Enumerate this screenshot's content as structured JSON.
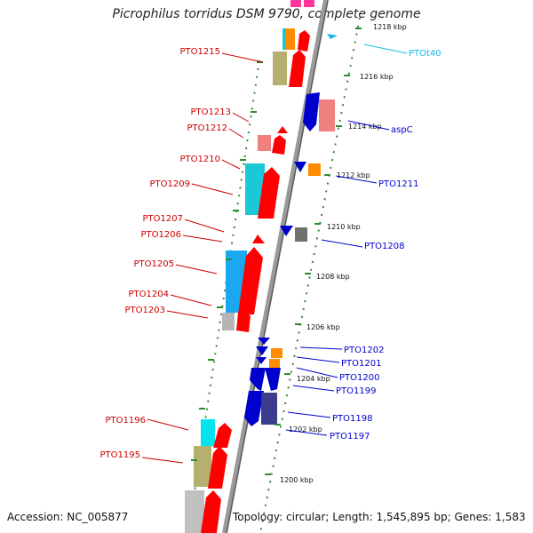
{
  "header": {
    "title": "Picrophilus torridus DSM 9790, complete genome"
  },
  "footer": {
    "accession": "Accession: NC_005877",
    "topology": "Topology: circular; Length: 1,545,895 bp; Genes: 1,583"
  },
  "ruler_ticks": [
    "1218 kbp",
    "1216 kbp",
    "1214 kbp",
    "1212 kbp",
    "1210 kbp",
    "1208 kbp",
    "1206 kbp",
    "1204 kbp",
    "1202 kbp",
    "1200 kbp"
  ],
  "left_labels": [
    "PTO1215",
    "PTO1213",
    "PTO1212",
    "PTO1210",
    "PTO1209",
    "PTO1207",
    "PTO1206",
    "PTO1205",
    "PTO1204",
    "PTO1203",
    "PTO1196",
    "PTO1195"
  ],
  "right_labels": [
    "PTOt40",
    "aspC",
    "PTO1211",
    "PTO1208",
    "PTO1202",
    "PTO1201",
    "PTO1200",
    "PTO1199",
    "PTO1198",
    "PTO1197"
  ],
  "colors": {
    "forward": "#ff0000",
    "reverse": "#0000cc",
    "cyan": "#1ac8d6",
    "blue_light": "#1aa8f0",
    "olive": "#b5b070",
    "pink": "#f08080",
    "orange": "#ff8c00",
    "gray": "#7a7a7a",
    "slate": "#3c3c8c",
    "magenta": "#ff3399",
    "trna": "#1ab8e8",
    "label_red": "#cc0000",
    "label_blue": "#0000cc",
    "label_cyan": "#1ab8e8",
    "backbone": "#9a9a9a",
    "tick_green": "#2e8b2e"
  }
}
